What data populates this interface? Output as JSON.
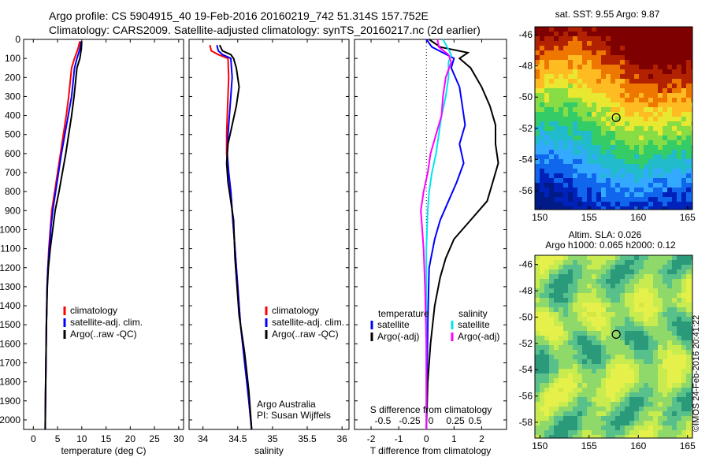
{
  "header": {
    "line1": "Argo profile: CS 5904915_40 19-Feb-2016 20160219_742 51.314S 157.752E",
    "line2": "Climatology: CARS2009. Satellite-adjusted climatology: synTS_20160217.nc (2d earlier)"
  },
  "stamp": "©IMOS 24-Feb-2016 20:41:22",
  "chart_data": [
    {
      "type": "line",
      "xlabel": "temperature (deg C)",
      "ylabel": "",
      "xlim": [
        -2,
        31
      ],
      "ylim": [
        2050,
        0
      ],
      "xticks": [
        0,
        5,
        10,
        15,
        20,
        25,
        30
      ],
      "yticks": [
        0,
        100,
        200,
        300,
        400,
        500,
        600,
        700,
        800,
        900,
        1000,
        1100,
        1200,
        1300,
        1400,
        1500,
        1600,
        1700,
        1800,
        1900,
        2000
      ],
      "legend": [
        "climatology",
        "satellite-adj. clim.",
        "Argo(..raw -QC)"
      ],
      "legend_position": "bottom-center",
      "series": [
        {
          "name": "climatology",
          "color": "#ff0000",
          "points": [
            [
              9.6,
              10
            ],
            [
              9.2,
              50
            ],
            [
              8.5,
              100
            ],
            [
              7.9,
              150
            ],
            [
              7.3,
              300
            ],
            [
              6.8,
              400
            ],
            [
              6.2,
              500
            ],
            [
              5.6,
              600
            ],
            [
              5.0,
              700
            ],
            [
              4.4,
              800
            ],
            [
              3.8,
              900
            ],
            [
              3.5,
              1000
            ],
            [
              3.2,
              1100
            ],
            [
              3.0,
              1200
            ],
            [
              2.85,
              1300
            ],
            [
              2.7,
              1500
            ],
            [
              2.6,
              1700
            ],
            [
              2.5,
              1900
            ],
            [
              2.45,
              2050
            ]
          ]
        },
        {
          "name": "satellite-adj. clim.",
          "color": "#0000ff",
          "points": [
            [
              9.9,
              10
            ],
            [
              9.6,
              50
            ],
            [
              9.0,
              100
            ],
            [
              8.5,
              150
            ],
            [
              7.9,
              300
            ],
            [
              7.2,
              400
            ],
            [
              6.5,
              500
            ],
            [
              5.8,
              600
            ],
            [
              5.2,
              700
            ],
            [
              4.6,
              800
            ],
            [
              4.0,
              900
            ],
            [
              3.6,
              1000
            ],
            [
              3.3,
              1100
            ],
            [
              3.0,
              1200
            ],
            [
              2.85,
              1300
            ],
            [
              2.7,
              1500
            ],
            [
              2.6,
              1700
            ],
            [
              2.5,
              1900
            ],
            [
              2.45,
              2050
            ]
          ]
        },
        {
          "name": "Argo(..raw -QC)",
          "color": "#000000",
          "points": [
            [
              10.0,
              10
            ],
            [
              9.9,
              50
            ],
            [
              9.6,
              100
            ],
            [
              9.0,
              150
            ],
            [
              8.4,
              300
            ],
            [
              7.9,
              400
            ],
            [
              7.3,
              500
            ],
            [
              6.7,
              600
            ],
            [
              6.0,
              700
            ],
            [
              5.3,
              800
            ],
            [
              4.5,
              900
            ],
            [
              4.0,
              1000
            ],
            [
              3.5,
              1100
            ],
            [
              3.1,
              1200
            ],
            [
              2.9,
              1300
            ],
            [
              2.7,
              1500
            ],
            [
              2.6,
              1700
            ],
            [
              2.5,
              1900
            ],
            [
              2.45,
              2050
            ]
          ]
        }
      ]
    },
    {
      "type": "line",
      "xlabel": "salinity",
      "ylabel": "",
      "xlim": [
        33.8,
        36.1
      ],
      "ylim": [
        2050,
        0
      ],
      "xticks": [
        34,
        34.5,
        35,
        35.5,
        36
      ],
      "legend": [
        "climatology",
        "satellite-adj. clim.",
        "Argo(..raw -QC)"
      ],
      "legend_position": "bottom-center",
      "annotation": [
        "Argo Australia",
        "PI: Susan Wijffels"
      ],
      "series": [
        {
          "name": "climatology",
          "color": "#ff0000",
          "points": [
            [
              34.1,
              30
            ],
            [
              34.12,
              60
            ],
            [
              34.22,
              80
            ],
            [
              34.36,
              100
            ],
            [
              34.37,
              200
            ],
            [
              34.36,
              300
            ],
            [
              34.35,
              400
            ],
            [
              34.34,
              500
            ],
            [
              34.34,
              600
            ],
            [
              34.37,
              700
            ],
            [
              34.4,
              800
            ],
            [
              34.42,
              900
            ],
            [
              34.44,
              1000
            ],
            [
              34.46,
              1100
            ],
            [
              34.48,
              1200
            ],
            [
              34.5,
              1300
            ],
            [
              34.52,
              1400
            ],
            [
              34.54,
              1500
            ],
            [
              34.57,
              1600
            ],
            [
              34.6,
              1700
            ],
            [
              34.63,
              1800
            ],
            [
              34.66,
              1900
            ],
            [
              34.7,
              2050
            ]
          ]
        },
        {
          "name": "satellite-adj. clim.",
          "color": "#0000ff",
          "points": [
            [
              34.2,
              30
            ],
            [
              34.22,
              60
            ],
            [
              34.28,
              80
            ],
            [
              34.4,
              100
            ],
            [
              34.42,
              200
            ],
            [
              34.4,
              300
            ],
            [
              34.38,
              400
            ],
            [
              34.36,
              500
            ],
            [
              34.35,
              600
            ],
            [
              34.37,
              700
            ],
            [
              34.4,
              800
            ],
            [
              34.42,
              900
            ],
            [
              34.44,
              1000
            ],
            [
              34.46,
              1100
            ],
            [
              34.48,
              1200
            ],
            [
              34.5,
              1300
            ],
            [
              34.52,
              1400
            ],
            [
              34.54,
              1500
            ],
            [
              34.57,
              1600
            ],
            [
              34.6,
              1700
            ],
            [
              34.63,
              1800
            ],
            [
              34.66,
              1900
            ],
            [
              34.7,
              2050
            ]
          ]
        },
        {
          "name": "Argo(..raw -QC)",
          "color": "#000000",
          "points": [
            [
              34.24,
              30
            ],
            [
              34.28,
              60
            ],
            [
              34.4,
              80
            ],
            [
              34.44,
              100
            ],
            [
              34.48,
              150
            ],
            [
              34.52,
              250
            ],
            [
              34.48,
              350
            ],
            [
              34.42,
              450
            ],
            [
              34.36,
              550
            ],
            [
              34.34,
              650
            ],
            [
              34.36,
              750
            ],
            [
              34.4,
              850
            ],
            [
              34.44,
              950
            ],
            [
              34.45,
              1050
            ],
            [
              34.46,
              1150
            ],
            [
              34.48,
              1250
            ],
            [
              34.5,
              1350
            ],
            [
              34.52,
              1450
            ],
            [
              34.56,
              1550
            ],
            [
              34.6,
              1650
            ],
            [
              34.63,
              1750
            ],
            [
              34.66,
              1850
            ],
            [
              34.68,
              1950
            ],
            [
              34.7,
              2050
            ]
          ]
        }
      ]
    },
    {
      "type": "line",
      "xlabel": "T difference from climatology",
      "x2label": "S difference from climatology",
      "ylabel": "",
      "xlim": [
        -2.6,
        2.9
      ],
      "ylim": [
        2050,
        0
      ],
      "xticks": [
        -2,
        -1,
        0,
        1,
        2
      ],
      "x2ticks": [
        "-0.5",
        "-0.25",
        "0",
        "0.25",
        "0.5"
      ],
      "legend": [
        "temperature",
        "satellite",
        "Argo(-adj)",
        "salinity",
        "satellite",
        "Argo(-adj)"
      ],
      "legend_position": "bottom-center",
      "series": [
        {
          "name": "satellite",
          "group": "temperature",
          "color": "#0000ff",
          "points": [
            [
              0.0,
              0
            ],
            [
              0.2,
              40
            ],
            [
              0.6,
              70
            ],
            [
              1.0,
              100
            ],
            [
              0.9,
              150
            ],
            [
              1.2,
              250
            ],
            [
              1.3,
              350
            ],
            [
              1.4,
              450
            ],
            [
              1.2,
              550
            ],
            [
              1.35,
              650
            ],
            [
              1.1,
              750
            ],
            [
              0.8,
              850
            ],
            [
              0.5,
              950
            ],
            [
              0.3,
              1050
            ],
            [
              0.1,
              1200
            ],
            [
              0.05,
              1500
            ],
            [
              0.0,
              2050
            ]
          ]
        },
        {
          "name": "Argo(-adj)",
          "group": "temperature",
          "color": "#000000",
          "points": [
            [
              0.1,
              0
            ],
            [
              0.5,
              40
            ],
            [
              1.5,
              70
            ],
            [
              1.2,
              100
            ],
            [
              1.6,
              150
            ],
            [
              2.0,
              250
            ],
            [
              2.3,
              350
            ],
            [
              2.5,
              450
            ],
            [
              2.5,
              550
            ],
            [
              2.6,
              650
            ],
            [
              2.4,
              750
            ],
            [
              2.2,
              850
            ],
            [
              1.6,
              950
            ],
            [
              1.0,
              1050
            ],
            [
              0.7,
              1150
            ],
            [
              0.5,
              1250
            ],
            [
              0.3,
              1400
            ],
            [
              0.15,
              1600
            ],
            [
              0.05,
              1800
            ],
            [
              0.0,
              2050
            ]
          ]
        },
        {
          "name": "satellite",
          "group": "salinity",
          "color": "#00e5ee",
          "points": [
            [
              0.6,
              0
            ],
            [
              0.75,
              40
            ],
            [
              0.9,
              80
            ],
            [
              0.8,
              120
            ],
            [
              0.8,
              200
            ],
            [
              0.7,
              300
            ],
            [
              0.55,
              400
            ],
            [
              0.45,
              500
            ],
            [
              0.35,
              600
            ],
            [
              0.2,
              700
            ],
            [
              0.1,
              800
            ],
            [
              0.05,
              900
            ],
            [
              0.0,
              1100
            ],
            [
              0.0,
              2050
            ]
          ]
        },
        {
          "name": "Argo(-adj)",
          "group": "salinity",
          "color": "#ff00ff",
          "points": [
            [
              0.4,
              0
            ],
            [
              0.45,
              40
            ],
            [
              0.8,
              80
            ],
            [
              0.9,
              120
            ],
            [
              0.7,
              200
            ],
            [
              0.6,
              300
            ],
            [
              0.55,
              400
            ],
            [
              0.35,
              500
            ],
            [
              0.15,
              600
            ],
            [
              0.05,
              700
            ],
            [
              -0.1,
              800
            ],
            [
              -0.2,
              900
            ],
            [
              -0.15,
              1000
            ],
            [
              -0.1,
              1100
            ],
            [
              -0.05,
              1300
            ],
            [
              0.0,
              1600
            ],
            [
              0.0,
              2050
            ]
          ]
        }
      ]
    },
    {
      "type": "heatmap",
      "title": "sat. SST: 9.55 Argo: 9.87",
      "xlim": [
        149.5,
        165.5
      ],
      "ylim": [
        -57.2,
        -45.5
      ],
      "xticks": [
        150,
        155,
        160,
        165
      ],
      "yticks": [
        -46,
        -48,
        -50,
        -52,
        -54,
        -56
      ],
      "marker": {
        "lon": 157.752,
        "lat": -51.314
      }
    },
    {
      "type": "heatmap",
      "title": "Altim. SLA: 0.026",
      "subtitle": "Argo h1000: 0.065 h2000: 0.12",
      "xlim": [
        149.5,
        165.5
      ],
      "ylim": [
        -59.2,
        -45.3
      ],
      "xticks": [
        150,
        155,
        160,
        165
      ],
      "yticks": [
        -46,
        -48,
        -50,
        -52,
        -54,
        -56,
        -58
      ],
      "marker": {
        "lon": 157.752,
        "lat": -51.314
      }
    }
  ]
}
